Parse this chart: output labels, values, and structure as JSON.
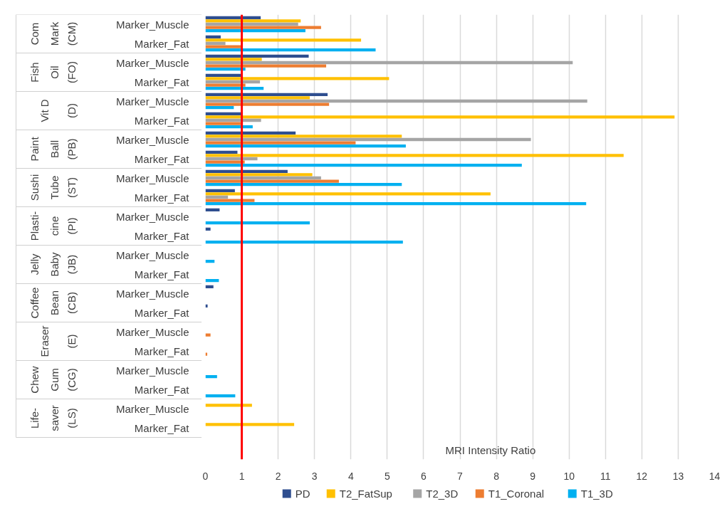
{
  "chart_data": {
    "type": "bar",
    "orientation": "horizontal",
    "xlabel": "MRI Intensity Ratio",
    "categories": [
      "Marker_Muscle",
      "Marker_Fat",
      "Marker_Muscle",
      "Marker_Fat",
      "Marker_Muscle",
      "Marker_Fat",
      "Marker_Muscle",
      "Marker_Fat",
      "Marker_Muscle",
      "Marker_Fat",
      "Marker_Muscle",
      "Marker_Fat",
      "Marker_Muscle",
      "Marker_Fat",
      "Marker_Muscle",
      "Marker_Fat",
      "Marker_Muscle",
      "Marker_Fat",
      "Marker_Muscle",
      "Marker_Fat",
      "Marker_Muscle",
      "Marker_Fat"
    ],
    "annotations": [
      "Com\nMark",
      "(CM)",
      "Fish\nOil",
      "(FO)",
      "Vit D",
      "(D)",
      "Paint\nBall",
      "(PB)",
      "Sushi\nTube",
      "(ST)",
      "Plasti-\ncine",
      "(PI)",
      "Jelly\nBaby",
      "(JB)",
      "Coffee\nBean",
      "(CB)",
      "Eraser",
      "(E)",
      "Chew\nGum",
      "(CG)",
      "Life-\nsaver",
      "(LS)"
    ],
    "series": [
      {
        "name": "PD",
        "color": "#2e4e8f",
        "values": [
          1.52,
          0.42,
          2.84,
          1.0,
          3.36,
          1.0,
          2.48,
          0.88,
          2.26,
          0.81,
          0.39,
          0.14,
          null,
          null,
          0.22,
          0.06,
          null,
          null,
          null,
          null,
          null,
          null
        ]
      },
      {
        "name": "T2_FatSup",
        "color": "#ffc000",
        "values": [
          2.62,
          4.28,
          1.55,
          5.05,
          2.87,
          12.9,
          5.4,
          11.5,
          2.94,
          7.84,
          null,
          null,
          null,
          null,
          null,
          null,
          null,
          null,
          null,
          null,
          1.28,
          2.44
        ]
      },
      {
        "name": "T2_3D",
        "color": "#a5a5a5",
        "values": [
          2.55,
          0.55,
          10.1,
          1.5,
          10.5,
          1.53,
          8.95,
          1.43,
          3.18,
          0.62,
          null,
          null,
          null,
          null,
          null,
          null,
          null,
          null,
          null,
          null,
          null,
          null
        ]
      },
      {
        "name": "T1_Coronal",
        "color": "#ed7d31",
        "values": [
          3.18,
          1.0,
          3.32,
          1.1,
          3.4,
          1.03,
          4.13,
          1.08,
          3.67,
          1.35,
          null,
          null,
          null,
          null,
          null,
          null,
          0.14,
          0.05,
          null,
          null,
          null,
          null
        ]
      },
      {
        "name": "T1_3D",
        "color": "#00b0f0",
        "values": [
          2.75,
          4.68,
          1.1,
          1.6,
          0.78,
          1.3,
          5.51,
          8.7,
          5.4,
          10.47,
          2.87,
          5.43,
          0.25,
          0.37,
          null,
          null,
          null,
          null,
          0.32,
          0.82,
          null,
          null
        ]
      }
    ],
    "xlim": [
      0,
      14
    ],
    "xticks": [
      0,
      1,
      2,
      3,
      4,
      5,
      6,
      7,
      8,
      9,
      10,
      11,
      12,
      13,
      14
    ],
    "ref_lines": [
      {
        "axis": "x",
        "value": 1,
        "color": "#ff0000"
      }
    ],
    "grid": "x",
    "legend": "bottom"
  }
}
